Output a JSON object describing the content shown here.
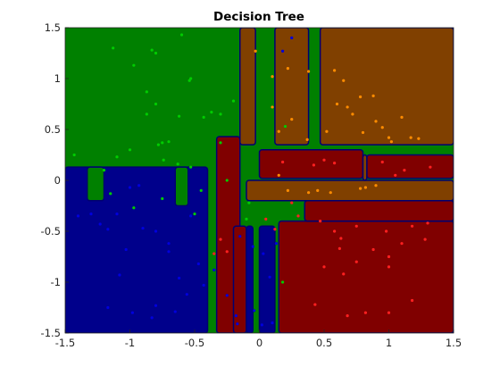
{
  "chart_data": {
    "type": "scatter",
    "title": "Decision Tree",
    "xlabel": "",
    "ylabel": "",
    "xlim": [
      -1.5,
      1.5
    ],
    "ylim": [
      -1.5,
      1.5
    ],
    "xticks": [
      "-1.5",
      "-1",
      "-0.5",
      "0",
      "0.5",
      "1",
      "1.5"
    ],
    "yticks": [
      "1.5",
      "1",
      "0.5",
      "0",
      "-0.5",
      "-1",
      "-1.5"
    ],
    "grid": false,
    "legend": "none",
    "region_colors": {
      "green": "#008000",
      "blue": "#00008B",
      "brown": "#804000",
      "red": "#800000"
    },
    "point_colors": {
      "green": "#00CC00",
      "blue": "#0000DD",
      "brown": "#FF8C00",
      "red": "#FF2020"
    },
    "regions": [
      {
        "class": "green",
        "x": [
          -1.5,
          1.5
        ],
        "y": [
          -1.5,
          1.5
        ]
      },
      {
        "class": "blue",
        "x": [
          -1.5,
          -0.4
        ],
        "y": [
          -1.5,
          0.13
        ]
      },
      {
        "class": "green",
        "x": [
          -1.33,
          -1.2
        ],
        "y": [
          -0.2,
          0.13
        ]
      },
      {
        "class": "green",
        "x": [
          -0.65,
          -0.55
        ],
        "y": [
          -0.25,
          0.13
        ]
      },
      {
        "class": "red",
        "x": [
          -0.33,
          -0.15
        ],
        "y": [
          -1.5,
          0.43
        ]
      },
      {
        "class": "red",
        "x": [
          0.15,
          1.5
        ],
        "y": [
          -1.5,
          -0.4
        ]
      },
      {
        "class": "red",
        "x": [
          0.35,
          1.5
        ],
        "y": [
          -0.4,
          -0.2
        ]
      },
      {
        "class": "red",
        "x": [
          0,
          0.8
        ],
        "y": [
          0.02,
          0.3
        ]
      },
      {
        "class": "red",
        "x": [
          0.83,
          1.5
        ],
        "y": [
          0.02,
          0.25
        ]
      },
      {
        "class": "red",
        "x": [
          -0.2,
          -0.1
        ],
        "y": [
          -1.5,
          -0.45
        ]
      },
      {
        "class": "blue",
        "x": [
          -0.1,
          -0.05
        ],
        "y": [
          -1.5,
          -0.45
        ]
      },
      {
        "class": "blue",
        "x": [
          0,
          0.12
        ],
        "y": [
          -1.5,
          -0.45
        ]
      },
      {
        "class": "brown",
        "x": [
          -0.15,
          -0.03
        ],
        "y": [
          0.35,
          1.5
        ]
      },
      {
        "class": "brown",
        "x": [
          0.12,
          0.38
        ],
        "y": [
          0.35,
          1.5
        ]
      },
      {
        "class": "brown",
        "x": [
          0.47,
          1.5
        ],
        "y": [
          0.35,
          1.5
        ]
      },
      {
        "class": "brown",
        "x": [
          -0.1,
          1.5
        ],
        "y": [
          -0.2,
          0.0
        ]
      },
      {
        "class": "brown",
        "x": [
          0.8,
          0.83
        ],
        "y": [
          0.0,
          0.25
        ]
      }
    ],
    "series": [
      {
        "class": "green",
        "points": [
          [
            -1.13,
            1.3
          ],
          [
            -0.97,
            1.13
          ],
          [
            -0.83,
            1.28
          ],
          [
            -0.8,
            1.25
          ],
          [
            -0.6,
            1.43
          ],
          [
            -0.53,
            1.0
          ],
          [
            -0.54,
            0.98
          ],
          [
            -0.87,
            0.87
          ],
          [
            -0.8,
            0.75
          ],
          [
            -0.87,
            0.65
          ],
          [
            -0.62,
            0.63
          ],
          [
            -0.43,
            0.62
          ],
          [
            -0.37,
            0.67
          ],
          [
            -1.43,
            0.25
          ],
          [
            -1.2,
            0.1
          ],
          [
            -1.1,
            0.23
          ],
          [
            -1.0,
            0.3
          ],
          [
            -0.78,
            0.35
          ],
          [
            -0.75,
            0.37
          ],
          [
            -0.7,
            0.38
          ],
          [
            -0.63,
            0.16
          ],
          [
            -0.53,
            0.13
          ],
          [
            -0.74,
            0.2
          ],
          [
            -1.15,
            -0.13
          ],
          [
            -0.97,
            -0.27
          ],
          [
            -0.75,
            -0.18
          ],
          [
            -0.5,
            -0.33
          ],
          [
            -0.3,
            0.65
          ],
          [
            -0.2,
            0.78
          ],
          [
            -0.45,
            -0.1
          ],
          [
            -0.08,
            -0.22
          ],
          [
            0.2,
            0.53
          ],
          [
            -0.25,
            0.0
          ],
          [
            -0.3,
            0.37
          ],
          [
            -0.1,
            -0.38
          ],
          [
            0.18,
            -1.0
          ]
        ]
      },
      {
        "class": "blue",
        "points": [
          [
            -1.4,
            -0.35
          ],
          [
            -1.3,
            -0.33
          ],
          [
            -1.1,
            -0.33
          ],
          [
            -1.0,
            -0.07
          ],
          [
            -0.93,
            -0.05
          ],
          [
            -1.23,
            -0.43
          ],
          [
            -1.17,
            -0.48
          ],
          [
            -1.08,
            -0.93
          ],
          [
            -1.03,
            -0.68
          ],
          [
            -0.9,
            -0.47
          ],
          [
            -0.8,
            -0.5
          ],
          [
            -0.7,
            -0.62
          ],
          [
            -0.7,
            -0.7
          ],
          [
            -0.53,
            -0.35
          ],
          [
            -0.62,
            -0.96
          ],
          [
            -0.56,
            -1.12
          ],
          [
            -0.8,
            -1.23
          ],
          [
            -0.65,
            -1.29
          ],
          [
            -1.17,
            -1.25
          ],
          [
            -0.98,
            -1.3
          ],
          [
            -0.83,
            -1.35
          ],
          [
            -0.47,
            -0.82
          ],
          [
            -0.18,
            -1.33
          ],
          [
            -0.17,
            -1.41
          ],
          [
            -0.04,
            -1.28
          ],
          [
            0.02,
            -1.42
          ],
          [
            0.1,
            -1.4
          ],
          [
            -0.05,
            -0.65
          ],
          [
            0.03,
            -0.72
          ],
          [
            0.13,
            -0.62
          ],
          [
            -0.43,
            -1.03
          ],
          [
            -0.15,
            -0.55
          ],
          [
            0.08,
            -0.95
          ],
          [
            0.25,
            1.4
          ],
          [
            0.18,
            1.27
          ],
          [
            -0.35,
            -0.88
          ],
          [
            -0.25,
            -1.13
          ]
        ]
      },
      {
        "class": "brown",
        "points": [
          [
            0.22,
            1.1
          ],
          [
            0.38,
            1.07
          ],
          [
            0.58,
            1.08
          ],
          [
            0.65,
            0.98
          ],
          [
            0.78,
            0.82
          ],
          [
            0.88,
            0.83
          ],
          [
            0.6,
            0.75
          ],
          [
            0.68,
            0.72
          ],
          [
            0.72,
            0.65
          ],
          [
            0.9,
            0.58
          ],
          [
            1.1,
            0.62
          ],
          [
            0.95,
            0.52
          ],
          [
            0.8,
            0.47
          ],
          [
            1.0,
            0.42
          ],
          [
            1.17,
            0.42
          ],
          [
            1.23,
            0.41
          ],
          [
            0.15,
            0.48
          ],
          [
            0.52,
            0.48
          ],
          [
            0.15,
            0.05
          ],
          [
            0.22,
            -0.1
          ],
          [
            0.38,
            -0.12
          ],
          [
            0.45,
            -0.1
          ],
          [
            0.82,
            -0.07
          ],
          [
            0.9,
            -0.05
          ],
          [
            0.78,
            -0.08
          ],
          [
            0.55,
            -0.12
          ],
          [
            -0.03,
            1.27
          ],
          [
            0.1,
            1.02
          ],
          [
            0.37,
            0.4
          ],
          [
            1.02,
            0.38
          ],
          [
            0.25,
            0.6
          ],
          [
            0.1,
            0.72
          ]
        ]
      },
      {
        "class": "red",
        "points": [
          [
            0.18,
            0.18
          ],
          [
            0.42,
            0.15
          ],
          [
            0.5,
            0.2
          ],
          [
            0.58,
            0.17
          ],
          [
            0.95,
            0.18
          ],
          [
            1.05,
            0.05
          ],
          [
            1.12,
            0.1
          ],
          [
            1.32,
            0.13
          ],
          [
            0.3,
            -0.35
          ],
          [
            0.47,
            -0.4
          ],
          [
            0.58,
            -0.5
          ],
          [
            0.63,
            -0.57
          ],
          [
            0.75,
            -0.45
          ],
          [
            0.75,
            -0.8
          ],
          [
            0.88,
            -0.68
          ],
          [
            0.98,
            -0.5
          ],
          [
            1.0,
            -0.75
          ],
          [
            1.1,
            -0.62
          ],
          [
            1.18,
            -0.45
          ],
          [
            1.3,
            -0.42
          ],
          [
            1.28,
            -0.58
          ],
          [
            0.62,
            -0.67
          ],
          [
            0.5,
            -0.85
          ],
          [
            0.65,
            -0.92
          ],
          [
            1.0,
            -0.85
          ],
          [
            1.0,
            -1.3
          ],
          [
            0.43,
            -1.22
          ],
          [
            0.68,
            -1.33
          ],
          [
            0.82,
            -1.3
          ],
          [
            1.18,
            -1.18
          ],
          [
            -0.3,
            -0.58
          ],
          [
            -0.25,
            -0.7
          ],
          [
            -0.35,
            -0.72
          ],
          [
            0.05,
            -0.38
          ],
          [
            0.25,
            -0.22
          ],
          [
            0.12,
            -0.48
          ]
        ]
      }
    ]
  }
}
